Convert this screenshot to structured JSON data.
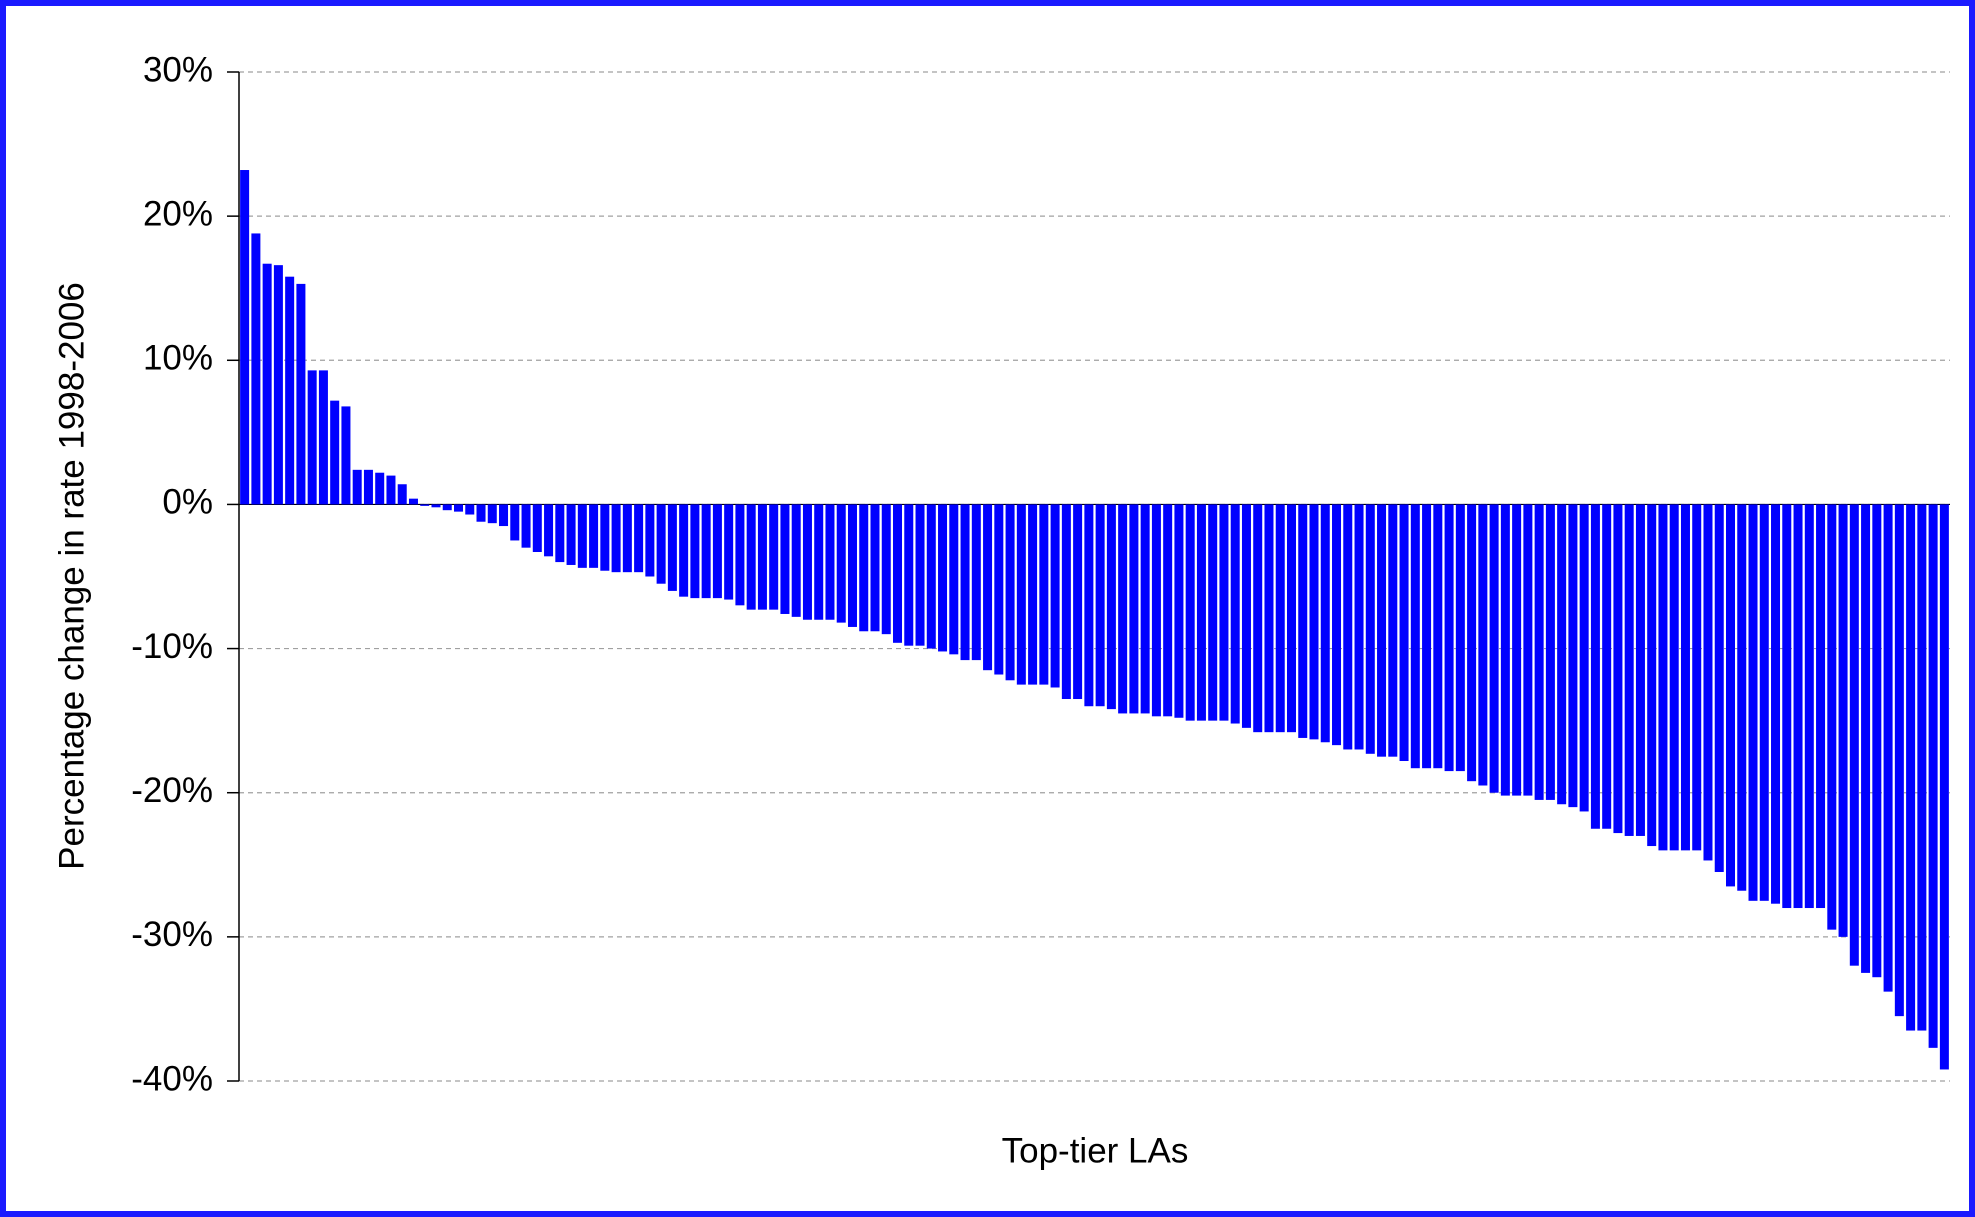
{
  "chart_data": {
    "type": "bar",
    "y_label": "Percentage change in rate 1998-2006",
    "x_label": "Top-tier LAs",
    "color": "#0000ff",
    "grid": true,
    "categories": [
      null,
      null,
      null,
      null,
      null,
      null,
      null,
      null,
      null,
      null,
      null,
      null,
      null,
      null,
      null,
      null,
      null,
      null,
      null,
      null,
      null,
      null,
      null,
      null,
      null,
      null,
      null,
      null,
      null,
      null,
      null,
      null,
      null,
      null,
      null,
      null,
      null,
      null,
      null,
      null,
      null,
      null,
      null,
      null,
      null,
      null,
      null,
      null,
      null,
      null,
      null,
      null,
      null,
      null,
      null,
      null,
      null,
      null,
      null,
      null,
      null,
      null,
      null,
      null,
      null,
      null,
      null,
      null,
      null,
      null,
      null,
      null,
      null,
      null,
      null,
      null,
      null,
      null,
      null,
      null,
      null,
      null,
      null,
      null,
      null,
      null,
      null,
      null,
      null,
      null,
      null,
      null,
      null,
      null,
      null,
      null,
      null,
      null,
      null,
      null,
      null,
      null,
      null,
      null,
      null,
      null,
      null,
      null,
      null,
      null,
      null,
      null,
      null,
      null,
      null,
      null,
      null,
      null,
      null,
      null,
      null,
      null,
      null,
      null,
      null,
      null,
      null,
      null,
      null,
      null,
      null,
      null,
      null,
      null,
      null,
      null,
      null,
      null,
      null,
      null,
      null,
      null,
      null,
      null,
      null,
      null,
      null,
      null,
      null,
      null,
      null,
      null
    ],
    "values": [
      23.2,
      18.8,
      16.7,
      16.6,
      15.8,
      15.3,
      9.3,
      9.3,
      7.2,
      6.8,
      2.4,
      2.4,
      2.2,
      2.0,
      1.4,
      0.4,
      -0.1,
      -0.2,
      -0.4,
      -0.5,
      -0.7,
      -1.2,
      -1.3,
      -1.5,
      -2.5,
      -3.0,
      -3.3,
      -3.6,
      -4.0,
      -4.2,
      -4.4,
      -4.4,
      -4.6,
      -4.7,
      -4.7,
      -4.7,
      -5.0,
      -5.5,
      -6.0,
      -6.4,
      -6.5,
      -6.5,
      -6.5,
      -6.6,
      -7.0,
      -7.3,
      -7.3,
      -7.3,
      -7.6,
      -7.8,
      -8.0,
      -8.0,
      -8.0,
      -8.2,
      -8.5,
      -8.8,
      -8.8,
      -9.0,
      -9.6,
      -9.8,
      -9.8,
      -10.0,
      -10.2,
      -10.4,
      -10.8,
      -10.8,
      -11.5,
      -11.8,
      -12.2,
      -12.5,
      -12.5,
      -12.5,
      -12.7,
      -13.5,
      -13.5,
      -14.0,
      -14.0,
      -14.2,
      -14.5,
      -14.5,
      -14.5,
      -14.7,
      -14.7,
      -14.8,
      -15.0,
      -15.0,
      -15.0,
      -15.0,
      -15.2,
      -15.5,
      -15.8,
      -15.8,
      -15.8,
      -15.8,
      -16.2,
      -16.3,
      -16.5,
      -16.7,
      -17.0,
      -17.0,
      -17.3,
      -17.5,
      -17.5,
      -17.8,
      -18.3,
      -18.3,
      -18.3,
      -18.5,
      -18.5,
      -19.2,
      -19.5,
      -20.0,
      -20.2,
      -20.2,
      -20.2,
      -20.5,
      -20.5,
      -20.8,
      -21.0,
      -21.3,
      -22.5,
      -22.5,
      -22.8,
      -23.0,
      -23.0,
      -23.7,
      -24.0,
      -24.0,
      -24.0,
      -24.0,
      -24.7,
      -25.5,
      -26.5,
      -26.8,
      -27.5,
      -27.5,
      -27.7,
      -28.0,
      -28.0,
      -28.0,
      -28.0,
      -29.5,
      -30.0,
      -32.0,
      -32.5,
      -32.8,
      -33.8,
      -35.5,
      -36.5,
      -36.5,
      -37.7,
      -39.2
    ],
    "ylim": [
      -40,
      30
    ],
    "yticks": [
      {
        "value": 30,
        "label": "30%"
      },
      {
        "value": 20,
        "label": "20%"
      },
      {
        "value": 10,
        "label": "10%"
      },
      {
        "value": 0,
        "label": "0%"
      },
      {
        "value": -10,
        "label": "-10%"
      },
      {
        "value": -20,
        "label": "-20%"
      },
      {
        "value": -30,
        "label": "-30%"
      },
      {
        "value": -40,
        "label": "-40%"
      }
    ]
  }
}
